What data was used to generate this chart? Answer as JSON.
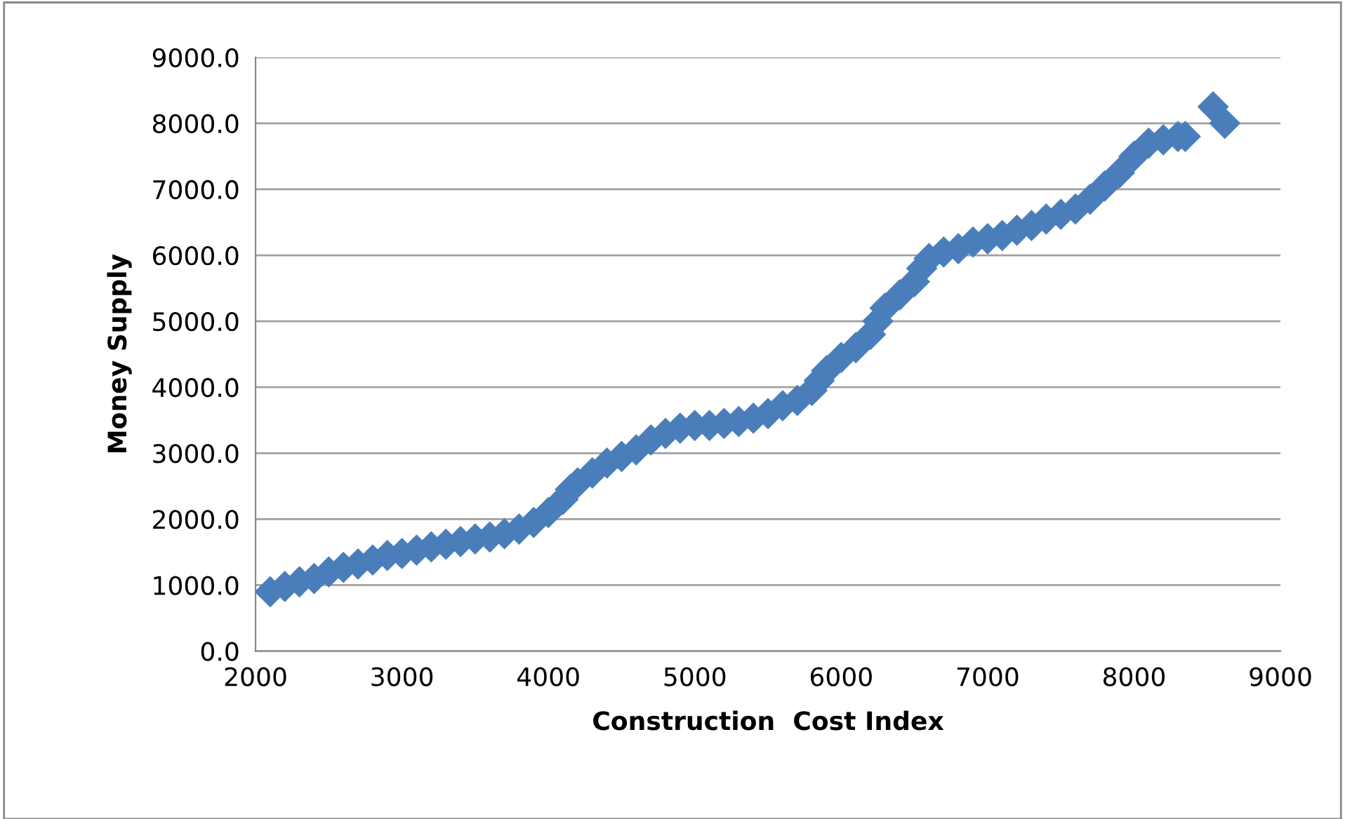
{
  "chart_data": {
    "type": "scatter",
    "xlabel": "Construction  Cost Index",
    "ylabel": "Money Supply",
    "x": [
      2100,
      2200,
      2300,
      2400,
      2500,
      2600,
      2700,
      2800,
      2900,
      3000,
      3100,
      3200,
      3300,
      3400,
      3500,
      3600,
      3700,
      3800,
      3900,
      4000,
      4100,
      4150,
      4200,
      4300,
      4400,
      4500,
      4600,
      4700,
      4800,
      4900,
      5000,
      5100,
      5200,
      5300,
      5400,
      5500,
      5600,
      5700,
      5800,
      5850,
      5900,
      6000,
      6100,
      6200,
      6250,
      6300,
      6400,
      6500,
      6550,
      6600,
      6700,
      6800,
      6900,
      7000,
      7100,
      7200,
      7300,
      7400,
      7500,
      7600,
      7700,
      7800,
      7900,
      8000,
      8100,
      8200,
      8300,
      8350,
      8540,
      8620
    ],
    "series": [
      {
        "color": "#4a7ebb",
        "values": [
          900,
          980,
          1050,
          1100,
          1200,
          1270,
          1320,
          1380,
          1450,
          1480,
          1530,
          1580,
          1620,
          1660,
          1700,
          1730,
          1780,
          1850,
          1950,
          2100,
          2300,
          2450,
          2550,
          2700,
          2850,
          2950,
          3050,
          3200,
          3300,
          3380,
          3420,
          3420,
          3450,
          3480,
          3530,
          3600,
          3720,
          3800,
          3950,
          4100,
          4250,
          4450,
          4600,
          4800,
          5000,
          5200,
          5400,
          5600,
          5800,
          5950,
          6050,
          6100,
          6200,
          6250,
          6300,
          6380,
          6450,
          6550,
          6620,
          6700,
          6850,
          7050,
          7250,
          7500,
          7700,
          7750,
          7800,
          7800,
          8250,
          8000
        ]
      }
    ],
    "xlim": [
      2000,
      9000
    ],
    "xticks": [
      2000,
      3000,
      4000,
      5000,
      6000,
      7000,
      8000,
      9000
    ],
    "ylim": [
      0,
      9000
    ],
    "yticks": [
      {
        "value": 0,
        "label": "0.0"
      },
      {
        "value": 1000,
        "label": "1000.0"
      },
      {
        "value": 2000,
        "label": "2000.0"
      },
      {
        "value": 3000,
        "label": "3000.0"
      },
      {
        "value": 4000,
        "label": "4000.0"
      },
      {
        "value": 5000,
        "label": "5000.0"
      },
      {
        "value": 6000,
        "label": "6000.0"
      },
      {
        "value": 7000,
        "label": "7000.0"
      },
      {
        "value": 8000,
        "label": "8000.0"
      },
      {
        "value": 9000,
        "label": "9000.0"
      }
    ],
    "grid": "y",
    "marker": "diamond",
    "legend": false
  }
}
